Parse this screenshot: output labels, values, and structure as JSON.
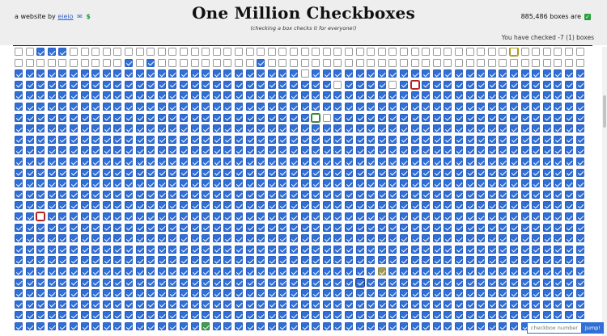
{
  "header": {
    "byline_prefix": "a website by",
    "author": "eieio",
    "dollar_icon": "$",
    "title": "One Million Checkboxes",
    "subtitle": "(checking a box checks it for everyone!)",
    "count_text": "885,486 boxes are",
    "checked_text": "You have checked -7 (1) boxes"
  },
  "jump": {
    "placeholder": "checkbox number",
    "button_label": "Jump!"
  },
  "grid": {
    "columns": 52,
    "visible_rows": 26,
    "colors": {
      "checked": "#2f6fd6",
      "unchecked": "#ffffff",
      "highlight_red": "#b32222",
      "highlight_gold": "#b39b22",
      "highlight_green": "#3b8a3b"
    },
    "rows": [
      "0011100000000000000000000000000000000000000000000000",
      "0000000000101000000000100000000000000000000000000000",
      "1111111111111111111111111101111111111111111111111111",
      "1111111111111111111111111111101111011111111111111111",
      "1111111111111111111111111111111111111111111111111111",
      "1111111111111111111111111111111111111111111111111111",
      "1111111111111111111111111111011111111111111111111111",
      "1111111111111111111111111111111111111111111111111111",
      "1111111111111111111111111111111111111111111111111111",
      "1111111111111111111111111111111111111111111111111111",
      "1111111111111111111111111111111111111111111111111111",
      "1111111111111111111111111111111111111111111111111111",
      "1111111111111111111111111111111111111111111111111111",
      "1111111111111111111111111111111111111111111111111111",
      "1111111111111111111111111111111111111111111111111111",
      "1111111111111111111111111111111111111111111111111111",
      "1111111111111111111111111111111111111111111111111111",
      "1111111111111111111111111111111111111111111111111111",
      "1111111111111111111111111111111111111111111111111111",
      "1111111111111111111111111111111111111111111111111111",
      "1111111111111111111111111111111111111111111111111111",
      "1111111111111111111111111111111111111111111111111111",
      "1111111111111111111111111111111111111111111111111111",
      "1111111111111111111111111111111111111111111111111111",
      "1111111111111111111111111111111111111111111111111111",
      "1111111111111111111111111111111111111111111111111111"
    ],
    "highlights": [
      {
        "row": 0,
        "col": 45,
        "style": "gold"
      },
      {
        "row": 3,
        "col": 36,
        "style": "red"
      },
      {
        "row": 6,
        "col": 27,
        "style": "green"
      },
      {
        "row": 15,
        "col": 2,
        "style": "red"
      },
      {
        "row": 20,
        "col": 33,
        "style": "olive"
      },
      {
        "row": 21,
        "col": 31,
        "style": "blue"
      },
      {
        "row": 25,
        "col": 17,
        "style": "greenfill"
      }
    ]
  }
}
